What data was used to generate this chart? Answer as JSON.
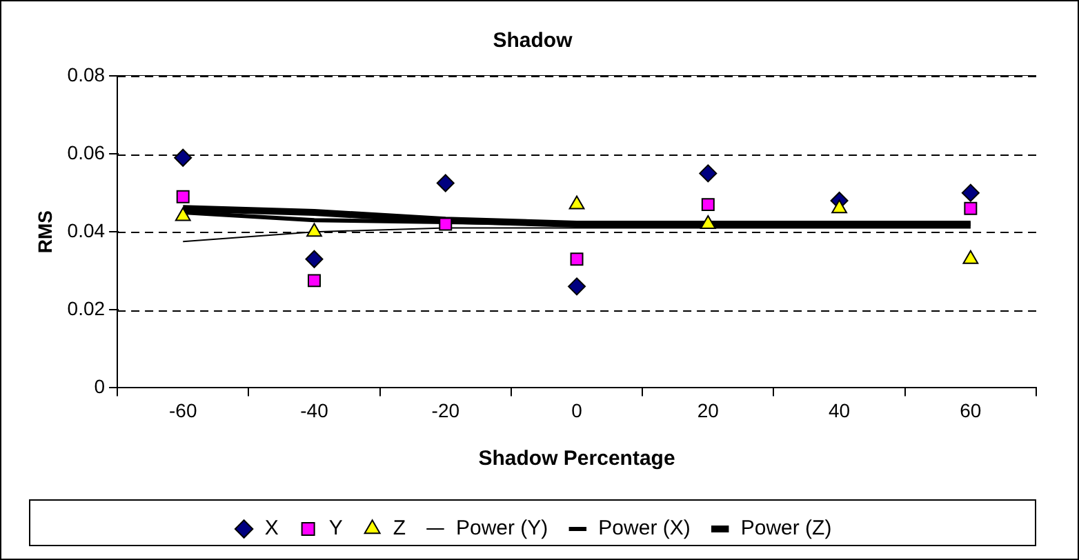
{
  "chart_data": {
    "type": "scatter",
    "title": "Shadow",
    "xlabel": "Shadow Percentage",
    "ylabel": "RMS",
    "categories": [
      "-60",
      "-40",
      "-20",
      "0",
      "20",
      "40",
      "60"
    ],
    "ylim": [
      0,
      0.08
    ],
    "yticks": [
      0,
      0.02,
      0.04,
      0.06,
      0.08
    ],
    "grid": "y",
    "legend": "bottom",
    "series": [
      {
        "name": "X",
        "marker": "diamond",
        "color": "#000080",
        "values": [
          0.059,
          0.033,
          0.0525,
          0.026,
          0.055,
          0.048,
          0.05
        ]
      },
      {
        "name": "Y",
        "marker": "square",
        "color": "#ff00ff",
        "values": [
          0.049,
          0.0275,
          0.042,
          0.033,
          0.047,
          null,
          0.046
        ]
      },
      {
        "name": "Z",
        "marker": "triangle",
        "color": "#ffff00",
        "values": [
          0.044,
          0.04,
          null,
          0.047,
          0.042,
          0.046,
          0.033
        ]
      },
      {
        "name": "Power (Y)",
        "type": "line",
        "marker": "none",
        "color": "#000000",
        "values": [
          0.0375,
          0.04,
          0.041,
          0.041,
          0.041,
          0.041,
          0.041
        ]
      },
      {
        "name": "Power (X)",
        "type": "line",
        "marker": "none",
        "color": "#000000",
        "values": [
          0.045,
          0.043,
          0.0425,
          0.042,
          0.042,
          0.042,
          0.042
        ]
      },
      {
        "name": "Power (Z)",
        "type": "line",
        "marker": "none",
        "color": "#000000",
        "values": [
          0.046,
          0.045,
          0.043,
          0.042,
          0.042,
          0.042,
          0.042
        ]
      }
    ]
  }
}
